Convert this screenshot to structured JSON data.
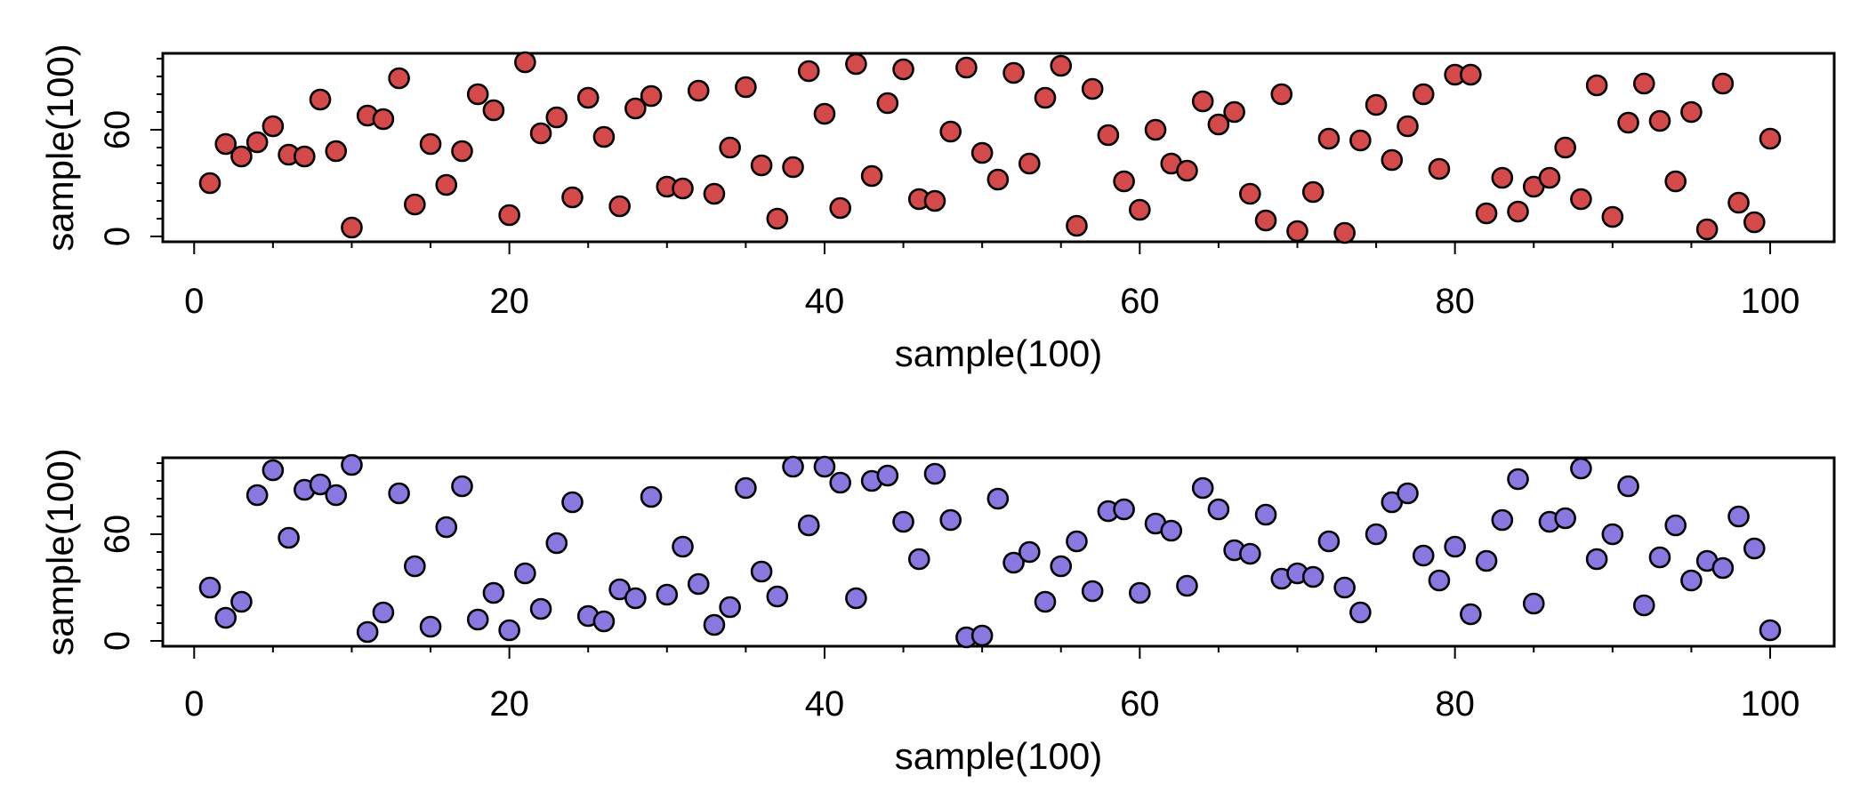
{
  "colors": {
    "panel_top": "#d44a4a",
    "panel_bottom": "#8a78e0",
    "axis": "#000000",
    "background": "#ffffff"
  },
  "chart_data": [
    {
      "type": "scatter",
      "title": "",
      "xlabel": "sample(100)",
      "ylabel": "sample(100)",
      "xlim": [
        1,
        100
      ],
      "ylim": [
        1,
        100
      ],
      "x_ticks": [
        "0",
        "20",
        "40",
        "60",
        "80",
        "100"
      ],
      "y_ticks": [
        "0",
        "60"
      ],
      "grid": false,
      "marker_color": "#d44a4a",
      "x": [
        1,
        2,
        3,
        4,
        5,
        6,
        7,
        8,
        9,
        10,
        11,
        12,
        13,
        14,
        15,
        16,
        17,
        18,
        19,
        20,
        21,
        22,
        23,
        24,
        25,
        26,
        27,
        28,
        29,
        30,
        31,
        32,
        33,
        34,
        35,
        36,
        37,
        38,
        39,
        40,
        41,
        42,
        43,
        44,
        45,
        46,
        47,
        48,
        49,
        50,
        51,
        52,
        53,
        54,
        55,
        56,
        57,
        58,
        59,
        60,
        61,
        62,
        63,
        64,
        65,
        66,
        67,
        68,
        69,
        70,
        71,
        72,
        73,
        74,
        75,
        76,
        77,
        78,
        79,
        80,
        81,
        82,
        83,
        84,
        85,
        86,
        87,
        88,
        89,
        90,
        91,
        92,
        93,
        94,
        95,
        96,
        97,
        98,
        99,
        100
      ],
      "y": [
        30,
        52,
        45,
        53,
        62,
        46,
        45,
        77,
        48,
        5,
        68,
        66,
        89,
        18,
        52,
        29,
        48,
        80,
        71,
        12,
        98,
        58,
        67,
        22,
        78,
        56,
        17,
        72,
        79,
        28,
        27,
        82,
        24,
        50,
        84,
        40,
        10,
        39,
        93,
        69,
        16,
        97,
        34,
        75,
        94,
        21,
        20,
        59,
        95,
        47,
        32,
        92,
        41,
        78,
        96,
        6,
        83,
        57,
        31,
        15,
        60,
        41,
        37,
        76,
        63,
        70,
        24,
        9,
        80,
        3,
        25,
        55,
        2,
        54,
        74,
        43,
        62,
        80,
        38,
        91,
        91,
        13,
        33,
        14,
        28,
        33,
        50,
        21,
        85,
        11,
        64,
        86,
        65,
        31,
        70,
        4,
        86,
        19,
        8,
        55
      ]
    },
    {
      "type": "scatter",
      "title": "",
      "xlabel": "sample(100)",
      "ylabel": "sample(100)",
      "xlim": [
        1,
        100
      ],
      "ylim": [
        1,
        100
      ],
      "x_ticks": [
        "0",
        "20",
        "40",
        "60",
        "80",
        "100"
      ],
      "y_ticks": [
        "0",
        "60"
      ],
      "grid": false,
      "marker_color": "#8a78e0",
      "x": [
        1,
        2,
        3,
        4,
        5,
        6,
        7,
        8,
        9,
        10,
        11,
        12,
        13,
        14,
        15,
        16,
        17,
        18,
        19,
        20,
        21,
        22,
        23,
        24,
        25,
        26,
        27,
        28,
        29,
        30,
        31,
        32,
        33,
        34,
        35,
        36,
        37,
        38,
        39,
        40,
        41,
        42,
        43,
        44,
        45,
        46,
        47,
        48,
        49,
        50,
        51,
        52,
        53,
        54,
        55,
        56,
        57,
        58,
        59,
        60,
        61,
        62,
        63,
        64,
        65,
        66,
        67,
        68,
        69,
        70,
        71,
        72,
        73,
        74,
        75,
        76,
        77,
        78,
        79,
        80,
        81,
        82,
        83,
        84,
        85,
        86,
        87,
        88,
        89,
        90,
        91,
        92,
        93,
        94,
        95,
        96,
        97,
        98,
        99,
        100
      ],
      "y": [
        30,
        13,
        22,
        82,
        96,
        58,
        85,
        88,
        82,
        99,
        5,
        16,
        83,
        42,
        8,
        64,
        87,
        12,
        27,
        6,
        38,
        18,
        55,
        78,
        14,
        11,
        29,
        24,
        81,
        26,
        53,
        32,
        9,
        19,
        86,
        39,
        25,
        98,
        65,
        98,
        89,
        24,
        90,
        93,
        67,
        46,
        94,
        68,
        2,
        3,
        80,
        44,
        50,
        22,
        42,
        56,
        28,
        73,
        74,
        27,
        66,
        62,
        31,
        86,
        74,
        51,
        49,
        71,
        35,
        38,
        36,
        56,
        30,
        16,
        60,
        78,
        83,
        48,
        34,
        53,
        15,
        45,
        68,
        91,
        21,
        67,
        69,
        97,
        46,
        60,
        87,
        20,
        47,
        65,
        34,
        45,
        41,
        70,
        52,
        6
      ]
    }
  ]
}
